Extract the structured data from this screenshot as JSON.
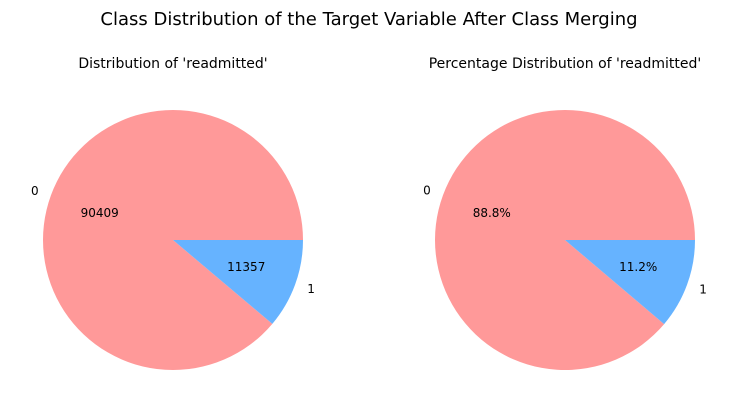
{
  "figure": {
    "title": "Class Distribution of the Target Variable After Class Merging"
  },
  "chart_data": [
    {
      "type": "pie",
      "title": "Distribution of 'readmitted'",
      "labels": [
        "0",
        "1"
      ],
      "values": [
        90409,
        11357
      ],
      "slice_labels": [
        "90409",
        "11357"
      ],
      "colors": [
        "#ff9999",
        "#66b3ff"
      ]
    },
    {
      "type": "pie",
      "title": "Percentage Distribution of 'readmitted'",
      "labels": [
        "0",
        "1"
      ],
      "values": [
        88.8,
        11.2
      ],
      "slice_labels": [
        "88.8%",
        "11.2%"
      ],
      "colors": [
        "#ff9999",
        "#66b3ff"
      ]
    }
  ]
}
